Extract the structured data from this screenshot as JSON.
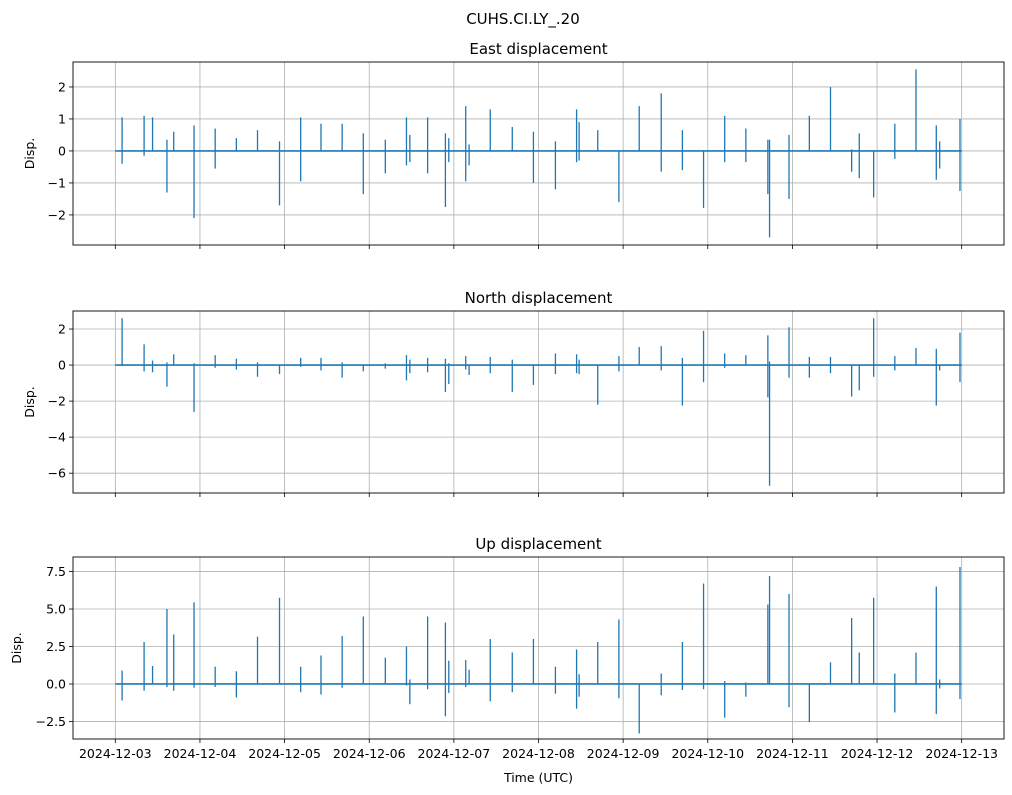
{
  "chart_data": [
    {
      "type": "line",
      "suptitle": "CUHS.CI.LY_.20",
      "title": "East displacement",
      "xlabel": "",
      "ylabel": "Disp.",
      "x_unit": "days since 2024-12-03 00:00 UTC",
      "xlim": [
        -0.5,
        10.5
      ],
      "ylim": [
        -2.94,
        2.78
      ],
      "yticks": [
        2,
        1,
        0,
        -1,
        -2
      ],
      "ytick_labels": [
        "2",
        "1",
        "0",
        "−1",
        "−2"
      ],
      "xticks": [
        0,
        1,
        2,
        3,
        4,
        5,
        6,
        7,
        8,
        9,
        10
      ],
      "xtick_labels": [],
      "grid": true,
      "color": "#1f77b4",
      "data_range": [
        0.0,
        10.0
      ],
      "spike_t": [
        0.08,
        0.34,
        0.44,
        0.61,
        0.69,
        0.93,
        1.18,
        1.43,
        1.68,
        1.94,
        2.19,
        2.43,
        2.68,
        2.93,
        3.19,
        3.44,
        3.48,
        3.69,
        3.9,
        3.94,
        4.14,
        4.18,
        4.43,
        4.69,
        4.94,
        5.2,
        5.45,
        5.48,
        5.7,
        5.95,
        6.19,
        6.45,
        6.7,
        6.95,
        7.2,
        7.45,
        7.71,
        7.73,
        7.96,
        8.2,
        8.45,
        8.7,
        8.79,
        8.96,
        9.21,
        9.46,
        9.7,
        9.74,
        9.98
      ],
      "spike_max": [
        1.05,
        1.1,
        1.05,
        0.35,
        0.6,
        0.8,
        0.7,
        0.4,
        0.65,
        0.3,
        1.05,
        0.85,
        0.85,
        0.55,
        0.35,
        1.05,
        0.5,
        1.05,
        0.55,
        0.4,
        1.4,
        0.2,
        1.3,
        0.75,
        0.6,
        0.3,
        1.3,
        0.9,
        0.65,
        0,
        1.4,
        1.8,
        0.65,
        0,
        1.1,
        0.7,
        0.35,
        0.35,
        0.5,
        1.1,
        2.0,
        0.05,
        0.55,
        0,
        0.85,
        2.55,
        0.8,
        0.3,
        1.0
      ],
      "spike_min": [
        -0.4,
        -0.15,
        0,
        -1.3,
        0,
        -2.1,
        -0.55,
        0,
        0,
        -1.7,
        -0.95,
        0,
        0,
        -1.35,
        -0.7,
        -0.45,
        -0.35,
        -0.7,
        -1.75,
        -0.35,
        -0.95,
        -0.45,
        0,
        0,
        -1.0,
        -1.2,
        -0.35,
        -0.3,
        0,
        -1.6,
        0,
        -0.65,
        -0.6,
        -1.78,
        -0.35,
        -0.35,
        -1.35,
        -2.7,
        -1.5,
        0,
        0,
        -0.65,
        -0.85,
        -1.45,
        -0.25,
        0,
        -0.9,
        -0.55,
        -1.25
      ]
    },
    {
      "type": "line",
      "title": "North displacement",
      "xlabel": "",
      "ylabel": "Disp.",
      "x_unit": "days since 2024-12-03 00:00 UTC",
      "xlim": [
        -0.5,
        10.5
      ],
      "ylim": [
        -7.1,
        3.0
      ],
      "yticks": [
        2,
        0,
        -2,
        -4,
        -6
      ],
      "ytick_labels": [
        "2",
        "0",
        "−2",
        "−4",
        "−6"
      ],
      "xticks": [
        0,
        1,
        2,
        3,
        4,
        5,
        6,
        7,
        8,
        9,
        10
      ],
      "xtick_labels": [],
      "grid": true,
      "color": "#1f77b4",
      "data_range": [
        0.0,
        10.0
      ],
      "spike_t": [
        0.08,
        0.34,
        0.44,
        0.61,
        0.69,
        0.93,
        1.18,
        1.43,
        1.68,
        1.94,
        2.19,
        2.43,
        2.68,
        2.93,
        3.19,
        3.44,
        3.48,
        3.69,
        3.9,
        3.94,
        4.14,
        4.18,
        4.43,
        4.69,
        4.94,
        5.2,
        5.45,
        5.48,
        5.7,
        5.95,
        6.19,
        6.45,
        6.7,
        6.95,
        7.2,
        7.45,
        7.71,
        7.73,
        7.96,
        8.2,
        8.45,
        8.7,
        8.79,
        8.96,
        9.21,
        9.46,
        9.7,
        9.74,
        9.98
      ],
      "spike_max": [
        2.6,
        1.15,
        0.25,
        0.15,
        0.6,
        0.1,
        0.55,
        0.35,
        0.15,
        0,
        0.4,
        0.4,
        0.15,
        0,
        0.1,
        0.55,
        0.3,
        0.4,
        0.35,
        0.1,
        0.5,
        0,
        0.45,
        0.3,
        0,
        0.65,
        0.6,
        0.3,
        0,
        0.5,
        1.0,
        1.05,
        0.4,
        1.9,
        0.65,
        0.55,
        1.65,
        0.2,
        2.1,
        0.45,
        0.45,
        0,
        0,
        2.6,
        0.5,
        0.95,
        0.9,
        0,
        1.8
      ],
      "spike_min": [
        -0.05,
        -0.35,
        -0.4,
        -1.2,
        0,
        -2.6,
        -0.15,
        -0.25,
        -0.65,
        -0.5,
        -0.1,
        -0.3,
        -0.7,
        -0.35,
        -0.2,
        -0.85,
        -0.45,
        -0.4,
        -1.5,
        -1.05,
        -0.25,
        -0.55,
        -0.45,
        -1.5,
        -1.1,
        -0.5,
        -0.45,
        -0.5,
        -2.2,
        -0.35,
        0,
        -0.3,
        -2.25,
        -0.95,
        -0.15,
        0,
        -1.8,
        -6.7,
        -0.7,
        -0.7,
        -0.45,
        -1.75,
        -1.4,
        -0.65,
        -0.3,
        0,
        -2.25,
        -0.3,
        -0.95
      ]
    },
    {
      "type": "line",
      "title": "Up displacement",
      "xlabel": "Time (UTC)",
      "ylabel": "Disp.",
      "x_unit": "days since 2024-12-03 00:00 UTC",
      "xlim": [
        -0.5,
        10.5
      ],
      "ylim": [
        -3.67,
        8.47
      ],
      "yticks": [
        7.5,
        5.0,
        2.5,
        0.0,
        -2.5
      ],
      "ytick_labels": [
        "7.5",
        "5.0",
        "2.5",
        "0.0",
        "−2.5"
      ],
      "xticks": [
        0,
        1,
        2,
        3,
        4,
        5,
        6,
        7,
        8,
        9,
        10
      ],
      "xtick_labels": [
        "2024-12-03",
        "2024-12-04",
        "2024-12-05",
        "2024-12-06",
        "2024-12-07",
        "2024-12-08",
        "2024-12-09",
        "2024-12-10",
        "2024-12-11",
        "2024-12-12",
        "2024-12-13"
      ],
      "grid": true,
      "color": "#1f77b4",
      "data_range": [
        0.0,
        10.0
      ],
      "spike_t": [
        0.08,
        0.34,
        0.44,
        0.61,
        0.69,
        0.93,
        1.18,
        1.43,
        1.68,
        1.94,
        2.19,
        2.43,
        2.68,
        2.93,
        3.19,
        3.44,
        3.48,
        3.69,
        3.9,
        3.94,
        4.14,
        4.18,
        4.43,
        4.69,
        4.94,
        5.2,
        5.45,
        5.48,
        5.7,
        5.95,
        6.19,
        6.45,
        6.7,
        6.95,
        7.2,
        7.45,
        7.71,
        7.73,
        7.96,
        8.2,
        8.45,
        8.7,
        8.79,
        8.96,
        9.21,
        9.46,
        9.7,
        9.74,
        9.98
      ],
      "spike_max": [
        0.9,
        2.8,
        1.2,
        5.0,
        3.3,
        5.45,
        1.15,
        0.85,
        3.15,
        5.75,
        1.15,
        1.9,
        3.2,
        4.5,
        1.75,
        2.5,
        0.3,
        4.5,
        4.1,
        1.55,
        1.6,
        0.95,
        3.0,
        2.1,
        3.0,
        1.15,
        2.3,
        0.65,
        2.8,
        4.3,
        0,
        0.7,
        2.8,
        6.7,
        0.2,
        0.1,
        5.3,
        7.2,
        6.0,
        0,
        1.45,
        4.4,
        2.1,
        5.75,
        0.7,
        2.1,
        6.5,
        0.3,
        7.8
      ],
      "spike_min": [
        -1.1,
        -0.45,
        0,
        -0.2,
        -0.45,
        -0.25,
        -0.2,
        -0.9,
        0,
        0,
        -0.55,
        -0.7,
        -0.25,
        0,
        0,
        -0.1,
        -1.35,
        -0.35,
        -2.15,
        -0.6,
        -0.2,
        0,
        -1.15,
        -0.55,
        0,
        -0.65,
        -1.65,
        -0.85,
        0,
        -0.95,
        -3.3,
        -0.75,
        -0.4,
        -0.35,
        -2.25,
        -0.85,
        0,
        0,
        -1.55,
        -2.55,
        0,
        0,
        0,
        0,
        -1.9,
        0,
        -2.0,
        -0.3,
        -1.0
      ]
    }
  ]
}
